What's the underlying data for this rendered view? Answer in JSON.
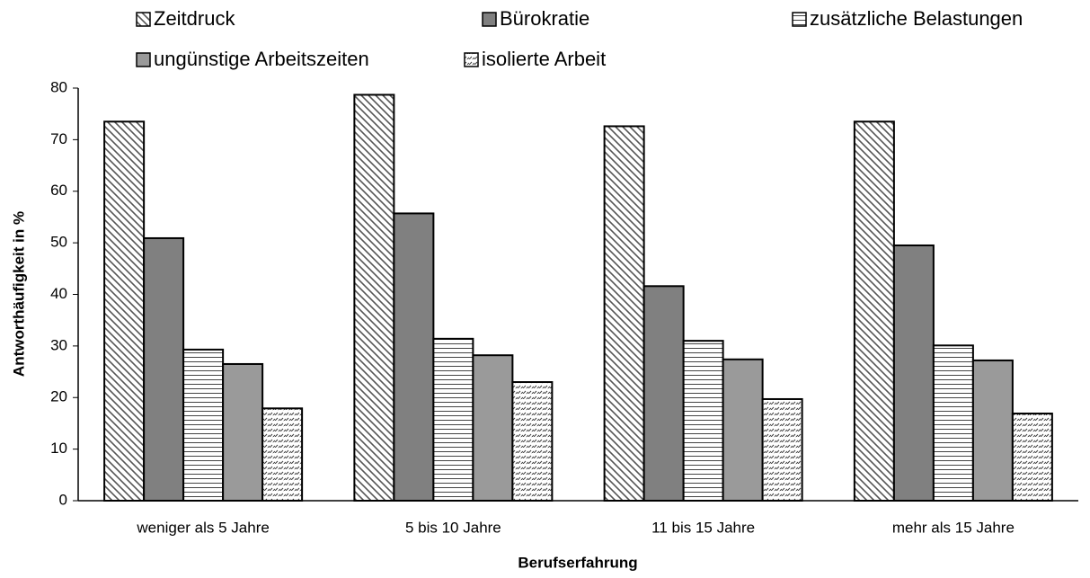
{
  "chart_data": {
    "type": "bar",
    "x_label": "Berufserfahrung",
    "y_label": "Antworthäufigkeit in %",
    "categories": [
      "weniger als 5 Jahre",
      "5 bis 10 Jahre",
      "11 bis 15 Jahre",
      "mehr als 15 Jahre"
    ],
    "series": [
      {
        "name": "Zeitdruck",
        "color": "#ffffff",
        "pattern": "diagonal",
        "values": [
          73.5,
          78.7,
          72.6,
          73.5
        ]
      },
      {
        "name": "Bürokratie",
        "color": "#808080",
        "pattern": "solid",
        "values": [
          50.9,
          55.7,
          41.6,
          49.5
        ]
      },
      {
        "name": "zusätzliche Belastungen",
        "color": "#ffffff",
        "pattern": "horizontal",
        "values": [
          29.3,
          31.4,
          31.0,
          30.1
        ]
      },
      {
        "name": "ungünstige Arbeitszeiten",
        "color": "#9a9a9a",
        "pattern": "solid",
        "values": [
          26.5,
          28.2,
          27.4,
          27.2
        ]
      },
      {
        "name": "isolierte Arbeit",
        "color": "#ffffff",
        "pattern": "dashed",
        "values": [
          17.9,
          23.0,
          19.7,
          16.9
        ]
      }
    ],
    "ylim": [
      0,
      80
    ],
    "yticks": [
      0,
      10,
      20,
      30,
      40,
      50,
      60,
      70,
      80
    ],
    "grid": false,
    "legend": "top"
  }
}
